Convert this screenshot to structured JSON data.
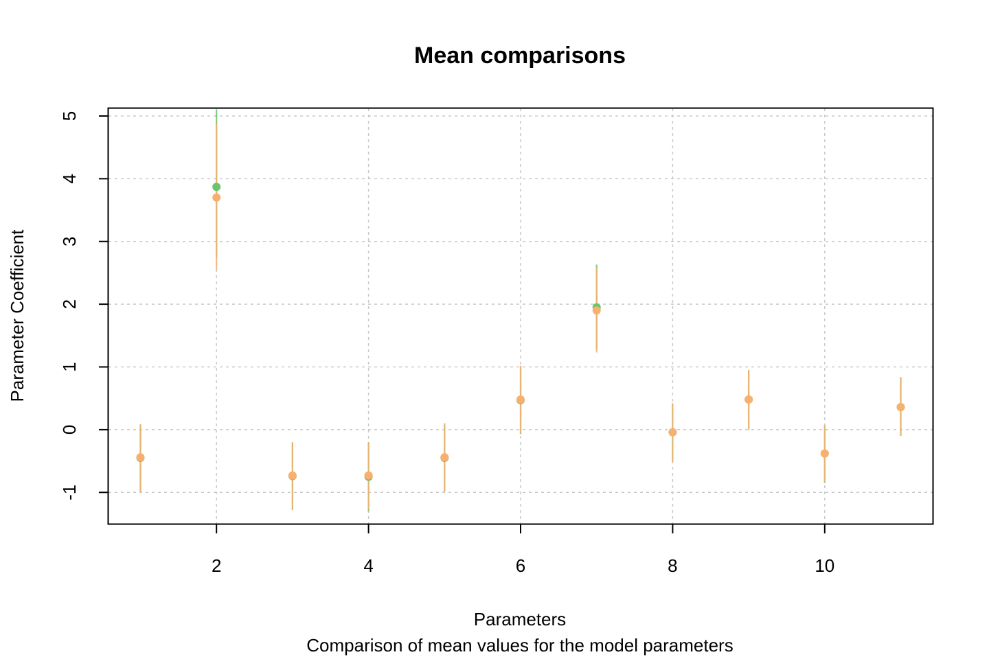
{
  "chart_data": {
    "type": "scatter",
    "title": "Mean comparisons",
    "xlabel": "Parameters",
    "subtitle": "Comparison of mean values for the model parameters",
    "ylabel": "Parameter Coefficient",
    "xlim": [
      0.58,
      11.42
    ],
    "ylim": [
      -1.5,
      5.12
    ],
    "x_ticks": [
      2,
      4,
      6,
      8,
      10
    ],
    "y_ticks": [
      -1,
      0,
      1,
      2,
      3,
      4,
      5
    ],
    "grid": true,
    "series": [
      {
        "color": "#6cc46c",
        "x": [
          1,
          2,
          3,
          4,
          5,
          6,
          7,
          8,
          9,
          10,
          11
        ],
        "mean": [
          -0.45,
          3.87,
          -0.74,
          -0.75,
          -0.45,
          0.47,
          1.95,
          -0.04,
          0.48,
          -0.38,
          0.36
        ],
        "lower": [
          -0.99,
          2.75,
          -1.28,
          -1.3,
          -0.99,
          -0.07,
          1.27,
          -0.5,
          0.01,
          -0.85,
          -0.1
        ],
        "upper": [
          0.08,
          5.1,
          -0.2,
          -0.2,
          0.1,
          1.01,
          2.63,
          0.42,
          0.95,
          0.07,
          0.83
        ]
      },
      {
        "color": "#f8b070",
        "x": [
          1,
          2,
          3,
          4,
          5,
          6,
          7,
          8,
          9,
          10,
          11
        ],
        "mean": [
          -0.44,
          3.7,
          -0.73,
          -0.73,
          -0.44,
          0.48,
          1.9,
          -0.04,
          0.48,
          -0.38,
          0.36
        ],
        "lower": [
          -1.0,
          2.55,
          -1.28,
          -1.27,
          -0.98,
          -0.06,
          1.23,
          -0.52,
          0.0,
          -0.84,
          -0.1
        ],
        "upper": [
          0.09,
          4.88,
          -0.2,
          -0.2,
          0.1,
          1.02,
          2.58,
          0.42,
          0.95,
          0.07,
          0.84
        ]
      }
    ]
  }
}
